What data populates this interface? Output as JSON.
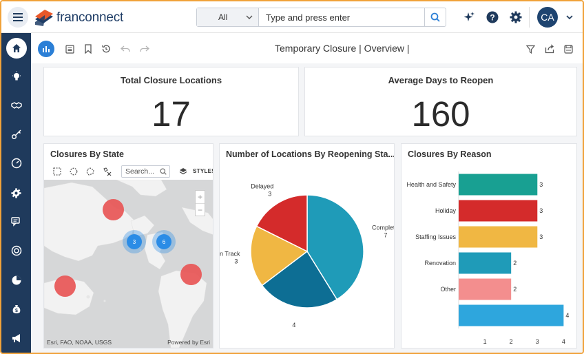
{
  "header": {
    "logo_text": "franconnect",
    "search_scope": "All",
    "search_placeholder": "Type and press enter",
    "avatar_initials": "CA"
  },
  "toolbar": {
    "page_title": "Temporary Closure | Overview |"
  },
  "kpis": [
    {
      "title": "Total Closure Locations",
      "value": "17"
    },
    {
      "title": "Average Days to Reopen",
      "value": "160"
    }
  ],
  "map_card": {
    "title": "Closures By State",
    "search_placeholder": "Search...",
    "styles_label": "STYLES",
    "attribution": "Esri, FAO, NOAA, USGS",
    "powered_by": "Powered by Esri",
    "clusters": [
      {
        "label": "3"
      },
      {
        "label": "6"
      }
    ]
  },
  "pie_card": {
    "title": "Number of Locations By Reopening Sta..."
  },
  "bar_card": {
    "title": "Closures By Reason"
  },
  "chart_data": [
    {
      "type": "pie",
      "title": "Number of Locations By Reopening Sta...",
      "slices": [
        {
          "label": "Completed",
          "value": 7,
          "color": "#1f9bb8"
        },
        {
          "label": "",
          "value": 4,
          "color": "#0d6e94"
        },
        {
          "label": "On Track",
          "value": 3,
          "color": "#f0b743"
        },
        {
          "label": "Delayed",
          "value": 3,
          "color": "#d42b2b"
        }
      ]
    },
    {
      "type": "bar",
      "orientation": "horizontal",
      "title": "Closures By Reason",
      "categories": [
        "Health and Safety",
        "Holiday",
        "Staffing Issues",
        "Renovation",
        "Other",
        ""
      ],
      "values": [
        3,
        3,
        3,
        2,
        2,
        4
      ],
      "colors": [
        "#18a092",
        "#d42b2b",
        "#f0b743",
        "#1f9bb8",
        "#f38e8e",
        "#2ea6dd"
      ],
      "xlim": [
        0,
        4.2
      ],
      "xticks": [
        1,
        2,
        3,
        4
      ]
    }
  ],
  "colors": {
    "sidebar": "#1f3a5c",
    "accent": "#2b7fd6",
    "frame": "#f0a23a",
    "map_marker": "#e85a5a",
    "cluster": "#2b8ce6"
  }
}
